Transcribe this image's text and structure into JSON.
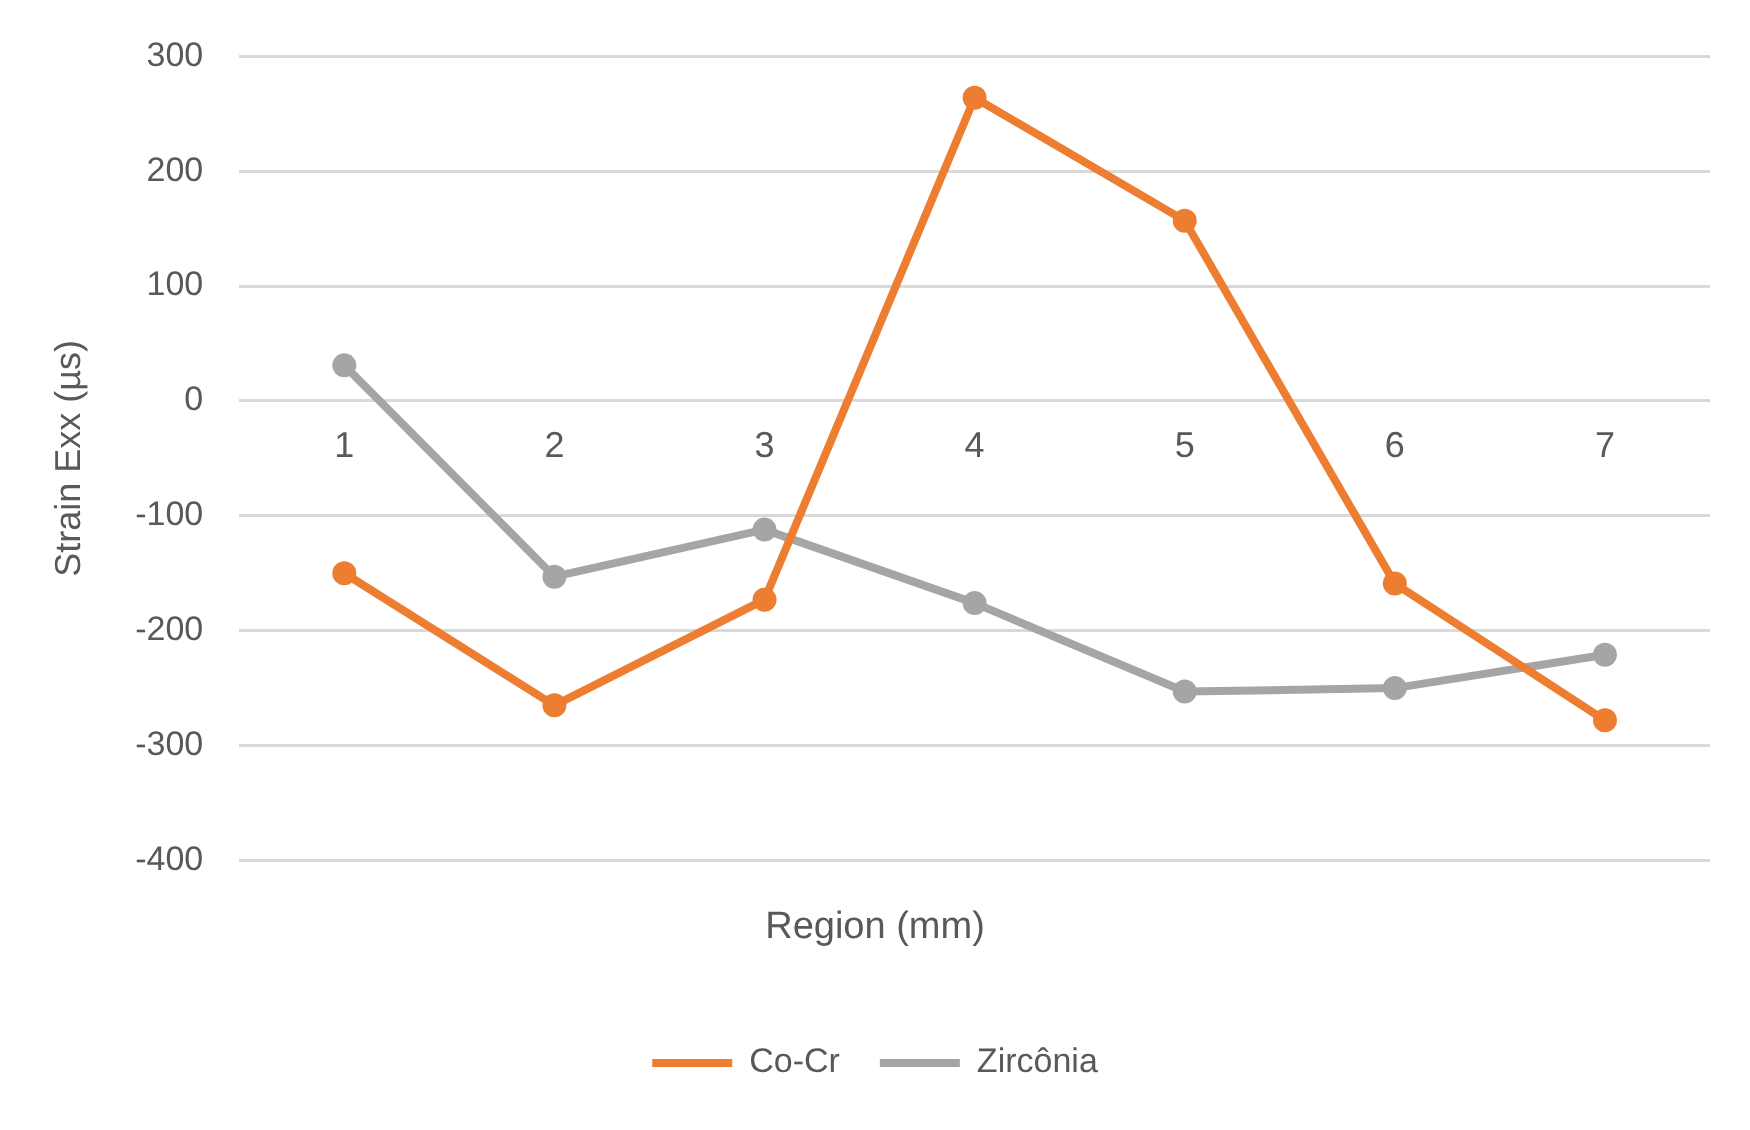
{
  "chart_data": {
    "type": "line",
    "xlabel": "Region (mm)",
    "ylabel": "Strain Exx (µs)",
    "categories": [
      "1",
      "2",
      "3",
      "4",
      "5",
      "6",
      "7"
    ],
    "series": [
      {
        "name": "Co-Cr",
        "color": "#ed7d31",
        "values": [
          -150,
          -265,
          -173,
          264,
          157,
          -159,
          -278
        ]
      },
      {
        "name": "Zircônia",
        "color": "#a5a5a5",
        "values": [
          31,
          -153,
          -112,
          -176,
          -253,
          -250,
          -221
        ]
      }
    ],
    "ylim": [
      -400,
      300
    ],
    "yticks": [
      -400,
      -300,
      -200,
      -100,
      0,
      100,
      200,
      300
    ],
    "grid": "y",
    "legend": "bottom",
    "marker": "circle",
    "line_style": "solid"
  }
}
